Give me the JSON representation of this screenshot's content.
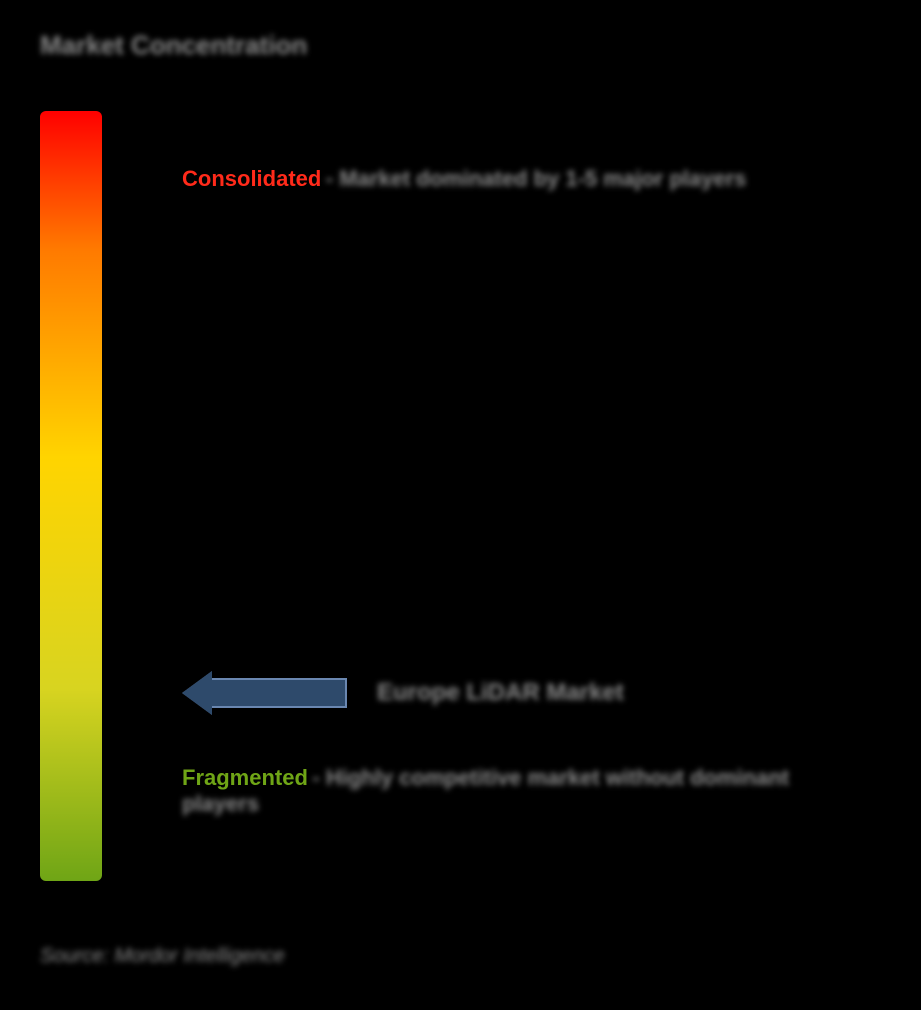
{
  "title": "Market Concentration",
  "gradient": {
    "top_color": "#ff0000",
    "mid1_color": "#ff7a00",
    "mid2_color": "#ffd400",
    "mid3_color": "#d8d420",
    "bottom_color": "#6fa516"
  },
  "consolidated": {
    "term": "Consolidated",
    "term_color": "#ff2a1a",
    "desc": "- Market dominated by 1-5 major players",
    "desc_color": "#8a8a8a"
  },
  "marker": {
    "label": "Europe LiDAR Market",
    "label_color": "#8a8a8a",
    "arrow_fill": "#2e4a6b",
    "arrow_border": "#6a87b0"
  },
  "fragmented": {
    "term": "Fragmented",
    "term_color": "#6fa516",
    "desc": "- Highly competitive market without dominant players",
    "desc_color": "#8a8a8a"
  },
  "source": {
    "text": "Source: Mordor Intelligence",
    "color": "#8a8a8a"
  }
}
